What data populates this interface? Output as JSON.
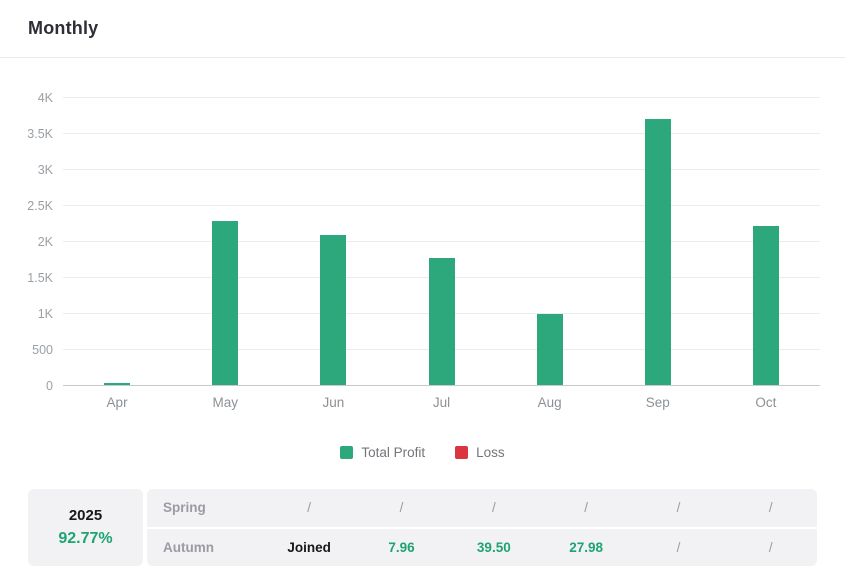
{
  "header": {
    "title": "Monthly"
  },
  "chart_data": {
    "type": "bar",
    "title": "Monthly",
    "categories": [
      "Apr",
      "May",
      "Jun",
      "Jul",
      "Aug",
      "Sep",
      "Oct"
    ],
    "series": [
      {
        "name": "Total Profit",
        "color": "#2ca87c",
        "values": [
          30,
          2280,
          2080,
          1760,
          990,
          3700,
          2210
        ]
      },
      {
        "name": "Loss",
        "color": "#da3642",
        "values": [
          0,
          0,
          0,
          0,
          0,
          0,
          0
        ]
      }
    ],
    "xlabel": "",
    "ylabel": "",
    "ylim": [
      0,
      4000
    ],
    "ytick_interval": 500,
    "ytick_labels": [
      "0",
      "500",
      "1K",
      "1.5K",
      "2K",
      "2.5K",
      "3K",
      "3.5K",
      "4K"
    ],
    "grid": true,
    "legend_position": "bottom"
  },
  "summary_table": {
    "year": "2025",
    "win_rate": "92.77%",
    "rows": [
      {
        "label": "Spring",
        "cells": [
          {
            "text": "/",
            "style": "muted"
          },
          {
            "text": "/",
            "style": "muted"
          },
          {
            "text": "/",
            "style": "muted"
          },
          {
            "text": "/",
            "style": "muted"
          },
          {
            "text": "/",
            "style": "muted"
          },
          {
            "text": "/",
            "style": "muted"
          }
        ]
      },
      {
        "label": "Autumn",
        "cells": [
          {
            "text": "Joined",
            "style": "dark"
          },
          {
            "text": "7.96",
            "style": "green"
          },
          {
            "text": "39.50",
            "style": "green"
          },
          {
            "text": "27.98",
            "style": "green"
          },
          {
            "text": "/",
            "style": "muted"
          },
          {
            "text": "/",
            "style": "muted"
          }
        ]
      }
    ]
  },
  "colors": {
    "profit_green": "#2ca87c",
    "loss_red": "#da3642",
    "value_green_text": "#1ea471"
  }
}
